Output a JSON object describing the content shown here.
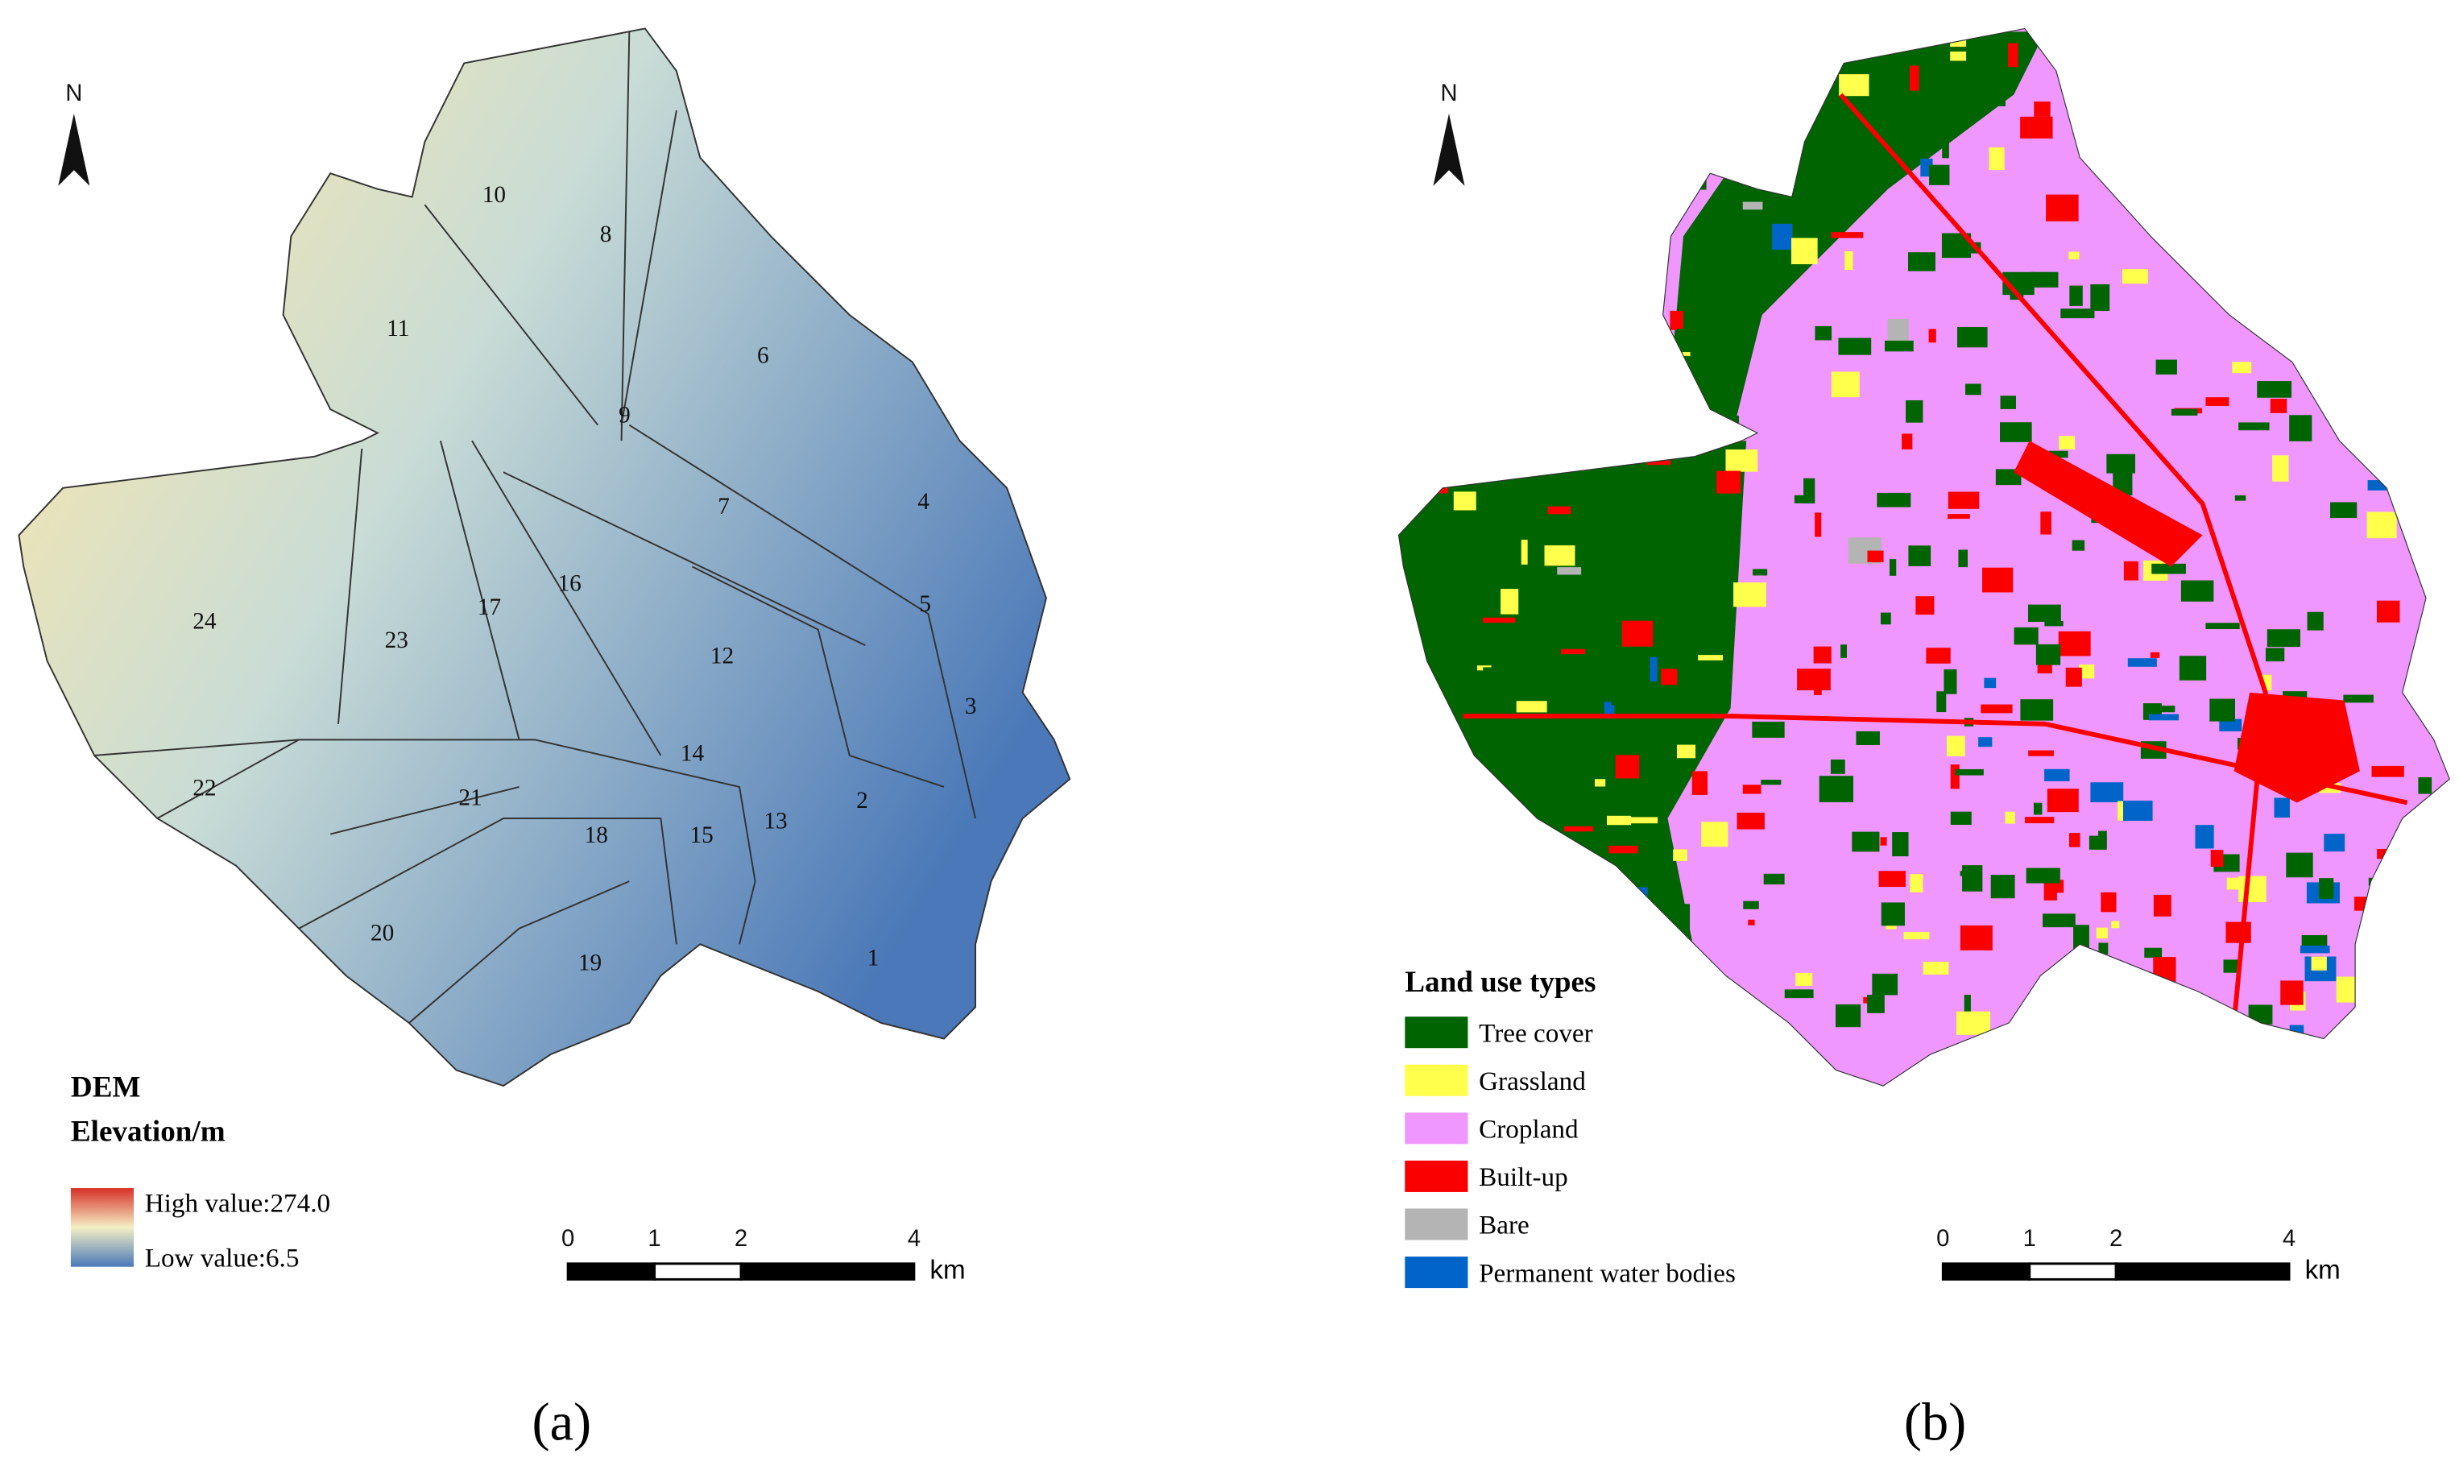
{
  "panel_a": {
    "north": "N",
    "subbasins": [
      "1",
      "2",
      "3",
      "4",
      "5",
      "6",
      "7",
      "8",
      "9",
      "10",
      "11",
      "12",
      "13",
      "14",
      "15",
      "16",
      "17",
      "18",
      "19",
      "20",
      "21",
      "22",
      "23",
      "24"
    ],
    "legend": {
      "title": "DEM",
      "subtitle": "Elevation/m",
      "high": "High value:274.0",
      "low": "Low value:6.5"
    },
    "scale_bar": {
      "ticks": [
        0,
        1,
        2,
        4
      ],
      "unit": "km"
    },
    "caption": "(a)"
  },
  "panel_b": {
    "north": "N",
    "legend": {
      "title": "Land use types",
      "items": [
        {
          "label": "Tree cover",
          "color": "#006400"
        },
        {
          "label": "Grassland",
          "color": "#ffff4c"
        },
        {
          "label": "Cropland",
          "color": "#f096ff"
        },
        {
          "label": "Built-up",
          "color": "#fa0000"
        },
        {
          "label": "Bare",
          "color": "#b4b4b4"
        },
        {
          "label": "Permanent water bodies",
          "color": "#0064c8"
        }
      ]
    },
    "scale_bar": {
      "ticks": [
        0,
        1,
        2,
        4
      ],
      "unit": "km"
    },
    "caption": "(b)"
  }
}
